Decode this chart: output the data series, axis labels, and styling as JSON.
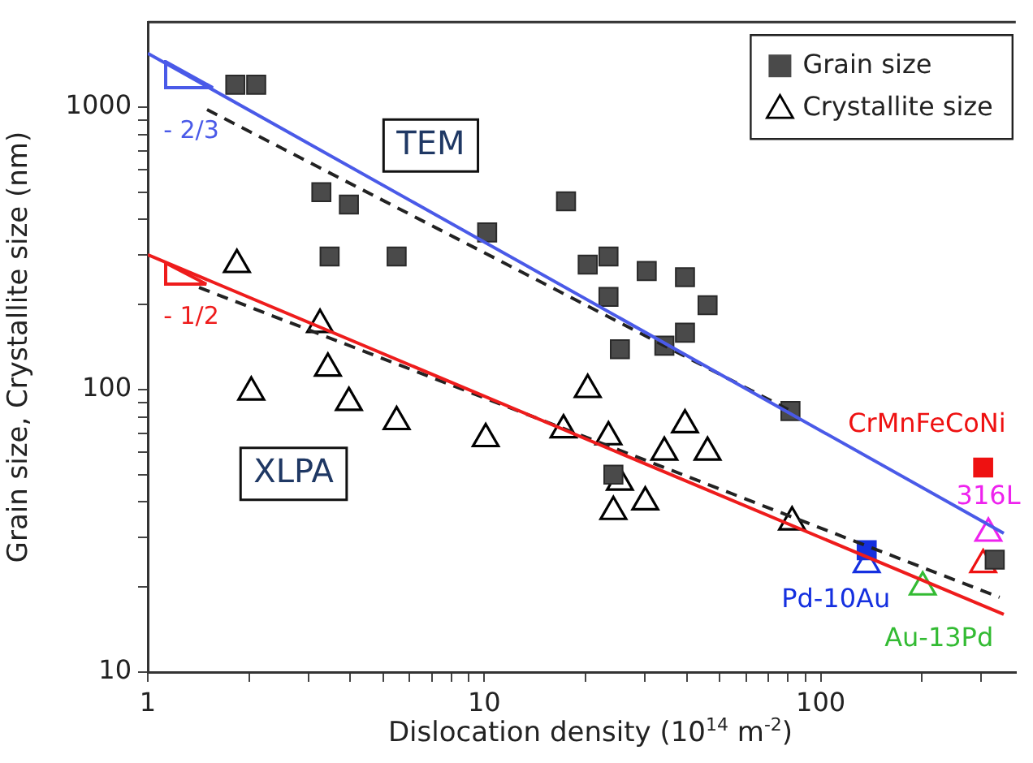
{
  "chart_data": {
    "type": "scatter",
    "xlabel": "Dislocation density (10$^{14}$ m$^{-2}$)",
    "ylabel": "Grain size, Crystallite size (nm)",
    "log": "xy",
    "grid": false,
    "legend": "top right",
    "xlim": [
      1,
      380
    ],
    "ylim": [
      10,
      2000
    ],
    "xticks": [
      1,
      {
        "value": 2,
        "label": null
      },
      {
        "value": 3,
        "label": null
      },
      {
        "value": 4,
        "label": null
      },
      {
        "value": 5,
        "label": null
      },
      {
        "value": 6,
        "label": null
      },
      {
        "value": 7,
        "label": null
      },
      {
        "value": 8,
        "label": null
      },
      {
        "value": 9,
        "label": null
      },
      10,
      {
        "value": 20,
        "label": null
      },
      {
        "value": 30,
        "label": null
      },
      {
        "value": 40,
        "label": null
      },
      {
        "value": 50,
        "label": null
      },
      {
        "value": 60,
        "label": null
      },
      {
        "value": 70,
        "label": null
      },
      {
        "value": 80,
        "label": null
      },
      {
        "value": 90,
        "label": null
      },
      100,
      {
        "value": 200,
        "label": null
      },
      {
        "value": 300,
        "label": null
      }
    ],
    "yticks": [
      10,
      {
        "value": 20,
        "label": null
      },
      {
        "value": 30,
        "label": null
      },
      {
        "value": 40,
        "label": null
      },
      {
        "value": 50,
        "label": null
      },
      {
        "value": 60,
        "label": null
      },
      {
        "value": 70,
        "label": null
      },
      {
        "value": 80,
        "label": null
      },
      {
        "value": 90,
        "label": null
      },
      100,
      {
        "value": 200,
        "label": null
      },
      {
        "value": 300,
        "label": null
      },
      {
        "value": 400,
        "label": null
      },
      {
        "value": 500,
        "label": null
      },
      {
        "value": 600,
        "label": null
      },
      {
        "value": 700,
        "label": null
      },
      {
        "value": 800,
        "label": null
      },
      {
        "value": 900,
        "label": null
      },
      1000
    ],
    "annotations": [
      "TEM",
      "XLPA",
      "- 2/3",
      "- 1/2"
    ],
    "series": [
      {
        "type": "line",
        "color": "#4a5ae8",
        "line_style": "solid",
        "marker": "none",
        "x": [
          1,
          350
        ],
        "values": [
          1550,
          31
        ]
      },
      {
        "type": "line",
        "color": "#ee1c1c",
        "line_style": "solid",
        "marker": "none",
        "x": [
          1,
          350
        ],
        "values": [
          300,
          16
        ]
      },
      {
        "type": "line",
        "color": "#222222",
        "line_style": "dashed",
        "marker": "none",
        "x": [
          1.5,
          80
        ],
        "values": [
          980,
          85
        ]
      },
      {
        "type": "line",
        "color": "#222222",
        "line_style": "dashed",
        "marker": "none",
        "x": [
          1.42,
          340
        ],
        "values": [
          230,
          18.4
        ]
      },
      {
        "name": "Grain size",
        "color": "#4a4a4a",
        "marker": "square",
        "x": [
          1.82,
          2.1,
          3.28,
          3.96,
          3.47,
          5.49,
          10.2,
          17.5,
          20.3,
          23.4,
          30.4,
          39.5,
          46.1,
          23.4,
          25.3,
          34.3,
          39.5,
          81.3,
          24.2,
          329
        ],
        "values": [
          1200,
          1200,
          500,
          452,
          296,
          296,
          360,
          464,
          277,
          296,
          263,
          250,
          199,
          213,
          139,
          143,
          159,
          84,
          50,
          25
        ]
      },
      {
        "name": "Crystallite size",
        "color": "#000000",
        "marker": "triangle",
        "x": [
          1.84,
          3.25,
          3.43,
          2.03,
          3.96,
          5.49,
          10.1,
          17.2,
          20.3,
          23.4,
          25.3,
          24.2,
          30.1,
          34.3,
          39.5,
          46.1,
          82.2
        ],
        "values": [
          277,
          170,
          119,
          98,
          90,
          77,
          67,
          72,
          100,
          68,
          47,
          37,
          40,
          60,
          75,
          60,
          34
        ]
      },
      {
        "color": "#1530e0",
        "marker": "square",
        "x": [
          137
        ],
        "values": [
          27
        ]
      },
      {
        "name": "CrMnFeCoNi",
        "color": "#ee1111",
        "marker": "square",
        "x": [
          304
        ],
        "values": [
          53
        ]
      },
      {
        "color": "#ee1111",
        "marker": "triangle",
        "x": [
          304
        ],
        "values": [
          24
        ]
      },
      {
        "name": "316L",
        "color": "#ee22ee",
        "marker": "triangle",
        "x": [
          315
        ],
        "values": [
          31
        ]
      },
      {
        "name": "Pd-10Au",
        "color": "#1530e0",
        "marker": "triangle",
        "x": [
          137
        ],
        "values": [
          24
        ]
      },
      {
        "name": "Au-13Pd",
        "color": "#33bb33",
        "marker": "triangle",
        "x": [
          201
        ],
        "values": [
          20
        ]
      }
    ]
  }
}
